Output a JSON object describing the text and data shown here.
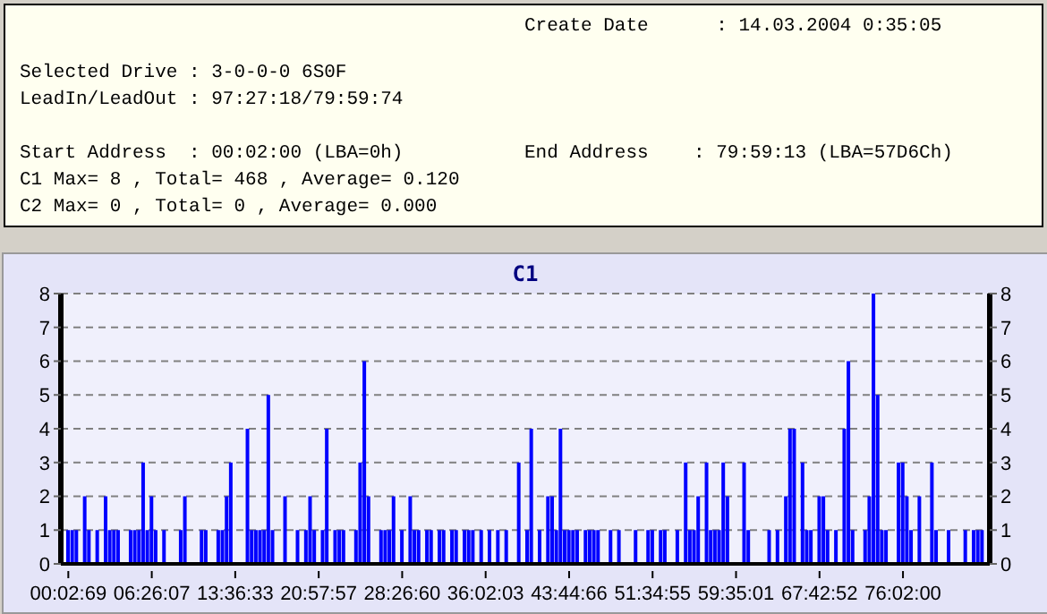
{
  "chart_data": {
    "type": "bar",
    "title": "C1",
    "annotations": [
      "Create Date      : 14.03.2004 0:35:05",
      "Selected Drive : 3-0-0-0 6S0F",
      "LeadIn/LeadOut : 97:27:18/79:59:74",
      "Start Address  : 00:02:00 (LBA=0h)",
      "End Address    : 79:59:13 (LBA=57D6Ch)",
      "C1 Max= 8 , Total= 468 , Average= 0.120",
      "C2 Max= 0 , Total= 0 , Average= 0.000"
    ],
    "categories": [
      "00:02:69",
      null,
      null,
      null,
      null,
      null,
      null,
      null,
      null,
      null,
      null,
      null,
      null,
      null,
      null,
      null,
      null,
      null,
      null,
      null,
      "06:26:07",
      null,
      null,
      null,
      null,
      null,
      null,
      null,
      null,
      null,
      null,
      null,
      null,
      null,
      null,
      null,
      null,
      null,
      null,
      null,
      "13:36:33",
      null,
      null,
      null,
      null,
      null,
      null,
      null,
      null,
      null,
      null,
      null,
      null,
      null,
      null,
      null,
      null,
      null,
      null,
      null,
      "20:57:57",
      null,
      null,
      null,
      null,
      null,
      null,
      null,
      null,
      null,
      null,
      null,
      null,
      null,
      null,
      null,
      null,
      null,
      null,
      null,
      "28:26:60",
      null,
      null,
      null,
      null,
      null,
      null,
      null,
      null,
      null,
      null,
      null,
      null,
      null,
      null,
      null,
      null,
      null,
      null,
      null,
      "36:02:03",
      null,
      null,
      null,
      null,
      null,
      null,
      null,
      null,
      null,
      null,
      null,
      null,
      null,
      null,
      null,
      null,
      null,
      null,
      null,
      "43:44:66",
      null,
      null,
      null,
      null,
      null,
      null,
      null,
      null,
      null,
      null,
      null,
      null,
      null,
      null,
      null,
      null,
      null,
      null,
      null,
      "51:34:55",
      null,
      null,
      null,
      null,
      null,
      null,
      null,
      null,
      null,
      null,
      null,
      null,
      null,
      null,
      null,
      null,
      null,
      null,
      null,
      "59:35:01",
      null,
      null,
      null,
      null,
      null,
      null,
      null,
      null,
      null,
      null,
      null,
      null,
      null,
      null,
      null,
      null,
      null,
      null,
      null,
      "67:42:52",
      null,
      null,
      null,
      null,
      null,
      null,
      null,
      null,
      null,
      null,
      null,
      null,
      null,
      null,
      null,
      null,
      null,
      null,
      null,
      "76:02:00",
      null,
      null,
      null,
      null,
      null,
      null,
      null,
      null,
      null,
      null,
      null,
      null,
      null,
      null,
      null,
      null,
      null,
      null,
      null
    ],
    "values": [
      1,
      1,
      1,
      0,
      2,
      1,
      0,
      1,
      0,
      2,
      1,
      1,
      1,
      0,
      0,
      1,
      1,
      1,
      3,
      1,
      2,
      1,
      0,
      1,
      0,
      0,
      0,
      1,
      2,
      0,
      0,
      0,
      1,
      1,
      0,
      0,
      1,
      1,
      2,
      3,
      0,
      0,
      0,
      4,
      1,
      1,
      1,
      1,
      5,
      1,
      0,
      0,
      2,
      0,
      0,
      1,
      0,
      1,
      2,
      1,
      0,
      1,
      4,
      0,
      1,
      1,
      1,
      0,
      0,
      1,
      3,
      6,
      2,
      0,
      0,
      1,
      1,
      1,
      2,
      0,
      1,
      0,
      2,
      1,
      1,
      0,
      1,
      1,
      0,
      1,
      1,
      0,
      1,
      1,
      0,
      1,
      1,
      1,
      0,
      1,
      0,
      1,
      0,
      1,
      0,
      1,
      0,
      0,
      3,
      0,
      1,
      4,
      0,
      1,
      0,
      2,
      2,
      1,
      4,
      1,
      1,
      1,
      1,
      0,
      1,
      1,
      1,
      1,
      0,
      0,
      1,
      0,
      1,
      0,
      0,
      0,
      1,
      0,
      0,
      1,
      1,
      0,
      1,
      1,
      0,
      0,
      1,
      0,
      3,
      1,
      1,
      2,
      0,
      3,
      1,
      1,
      1,
      3,
      2,
      0,
      0,
      0,
      3,
      1,
      0,
      0,
      0,
      0,
      1,
      0,
      1,
      0,
      2,
      4,
      4,
      0,
      3,
      1,
      1,
      0,
      2,
      2,
      1,
      0,
      1,
      0,
      4,
      6,
      1,
      0,
      0,
      1,
      2,
      8,
      5,
      1,
      1,
      0,
      0,
      3,
      3,
      2,
      1,
      0,
      2,
      0,
      0,
      3,
      1,
      0,
      0,
      1,
      0,
      0,
      0,
      1,
      0,
      1,
      1,
      1
    ],
    "color": "#0000ff",
    "ylim": [
      0,
      8
    ],
    "yticks": [
      0,
      1,
      2,
      3,
      4,
      5,
      6,
      7,
      8
    ],
    "y2lim": [
      0,
      8
    ],
    "y2ticks": [
      0,
      1,
      2,
      3,
      4,
      5,
      6,
      7,
      8
    ],
    "grid": "y"
  }
}
